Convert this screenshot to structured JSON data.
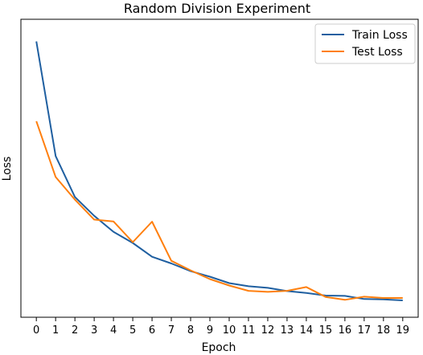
{
  "chart_data": {
    "type": "line",
    "title": "Random Division Experiment",
    "xlabel": "Epoch",
    "ylabel": "Loss",
    "x": [
      0,
      1,
      2,
      3,
      4,
      5,
      6,
      7,
      8,
      9,
      10,
      11,
      12,
      13,
      14,
      15,
      16,
      17,
      18,
      19
    ],
    "x_tick_labels": [
      "0",
      "1",
      "2",
      "3",
      "4",
      "5",
      "6",
      "7",
      "8",
      "9",
      "10",
      "11",
      "12",
      "13",
      "14",
      "15",
      "16",
      "17",
      "18",
      "19"
    ],
    "xlim": [
      -0.8,
      19.8
    ],
    "ylim": [
      0,
      1
    ],
    "y_ticks_shown": false,
    "grid": false,
    "legend_position": "top-right",
    "series": [
      {
        "name": "Train Loss",
        "color": "#1f5fa0",
        "values": [
          0.971,
          0.54,
          0.386,
          0.315,
          0.255,
          0.213,
          0.161,
          0.136,
          0.107,
          0.086,
          0.062,
          0.05,
          0.044,
          0.032,
          0.025,
          0.015,
          0.014,
          0.002,
          0.001,
          -0.003
        ]
      },
      {
        "name": "Test Loss",
        "color": "#ff7f0e",
        "values": [
          0.671,
          0.461,
          0.376,
          0.301,
          0.294,
          0.216,
          0.293,
          0.146,
          0.11,
          0.077,
          0.053,
          0.033,
          0.029,
          0.033,
          0.047,
          0.01,
          -0.001,
          0.011,
          0.006,
          0.006
        ]
      }
    ]
  }
}
